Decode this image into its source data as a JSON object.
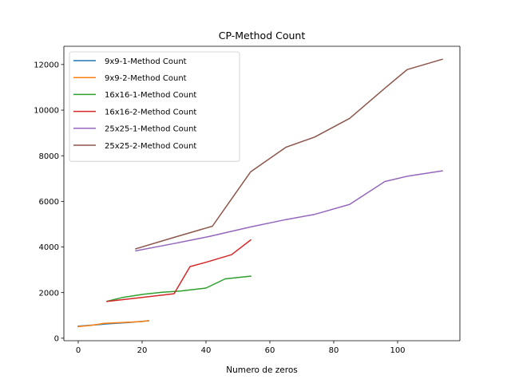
{
  "chart_data": {
    "type": "line",
    "title": "CP-Method Count",
    "xlabel": "Numero de zeros",
    "ylabel": "",
    "xlim": [
      -4.5,
      119.5
    ],
    "ylim": [
      -110,
      12800
    ],
    "xticks": [
      0,
      20,
      40,
      60,
      80,
      100
    ],
    "yticks": [
      0,
      2000,
      4000,
      6000,
      8000,
      10000,
      12000
    ],
    "grid": false,
    "legend_position": "top-left",
    "series": [
      {
        "name": "9x9-1-Method Count",
        "color": "#1f77b4",
        "x": [
          0,
          5,
          10,
          16,
          22
        ],
        "y": [
          530,
          580,
          640,
          690,
          760
        ]
      },
      {
        "name": "9x9-2-Method Count",
        "color": "#ff7f0e",
        "x": [
          0,
          4,
          8,
          14,
          20,
          22
        ],
        "y": [
          510,
          560,
          650,
          690,
          730,
          770
        ]
      },
      {
        "name": "16x16-1-Method Count",
        "color": "#2ca02c",
        "x": [
          9,
          14,
          20,
          26,
          32,
          40,
          46,
          54
        ],
        "y": [
          1620,
          1790,
          1920,
          2010,
          2070,
          2200,
          2600,
          2720
        ]
      },
      {
        "name": "16x16-2-Method Count",
        "color": "#d62728",
        "x": [
          9,
          20,
          30,
          35,
          40,
          48,
          54
        ],
        "y": [
          1610,
          1790,
          1950,
          3140,
          3330,
          3660,
          4310
        ]
      },
      {
        "name": "25x25-1-Method Count",
        "color": "#9467bd",
        "x": [
          18,
          30,
          41,
          54,
          65,
          74,
          85,
          96,
          103,
          114
        ],
        "y": [
          3830,
          4150,
          4460,
          4880,
          5200,
          5430,
          5870,
          6870,
          7100,
          7340
        ]
      },
      {
        "name": "25x25-2-Method Count",
        "color": "#8c564b",
        "x": [
          18,
          30,
          42,
          54,
          65,
          74,
          85,
          96,
          103,
          114
        ],
        "y": [
          3920,
          4420,
          4910,
          7300,
          8370,
          8820,
          9640,
          10960,
          11780,
          12230
        ]
      }
    ]
  }
}
